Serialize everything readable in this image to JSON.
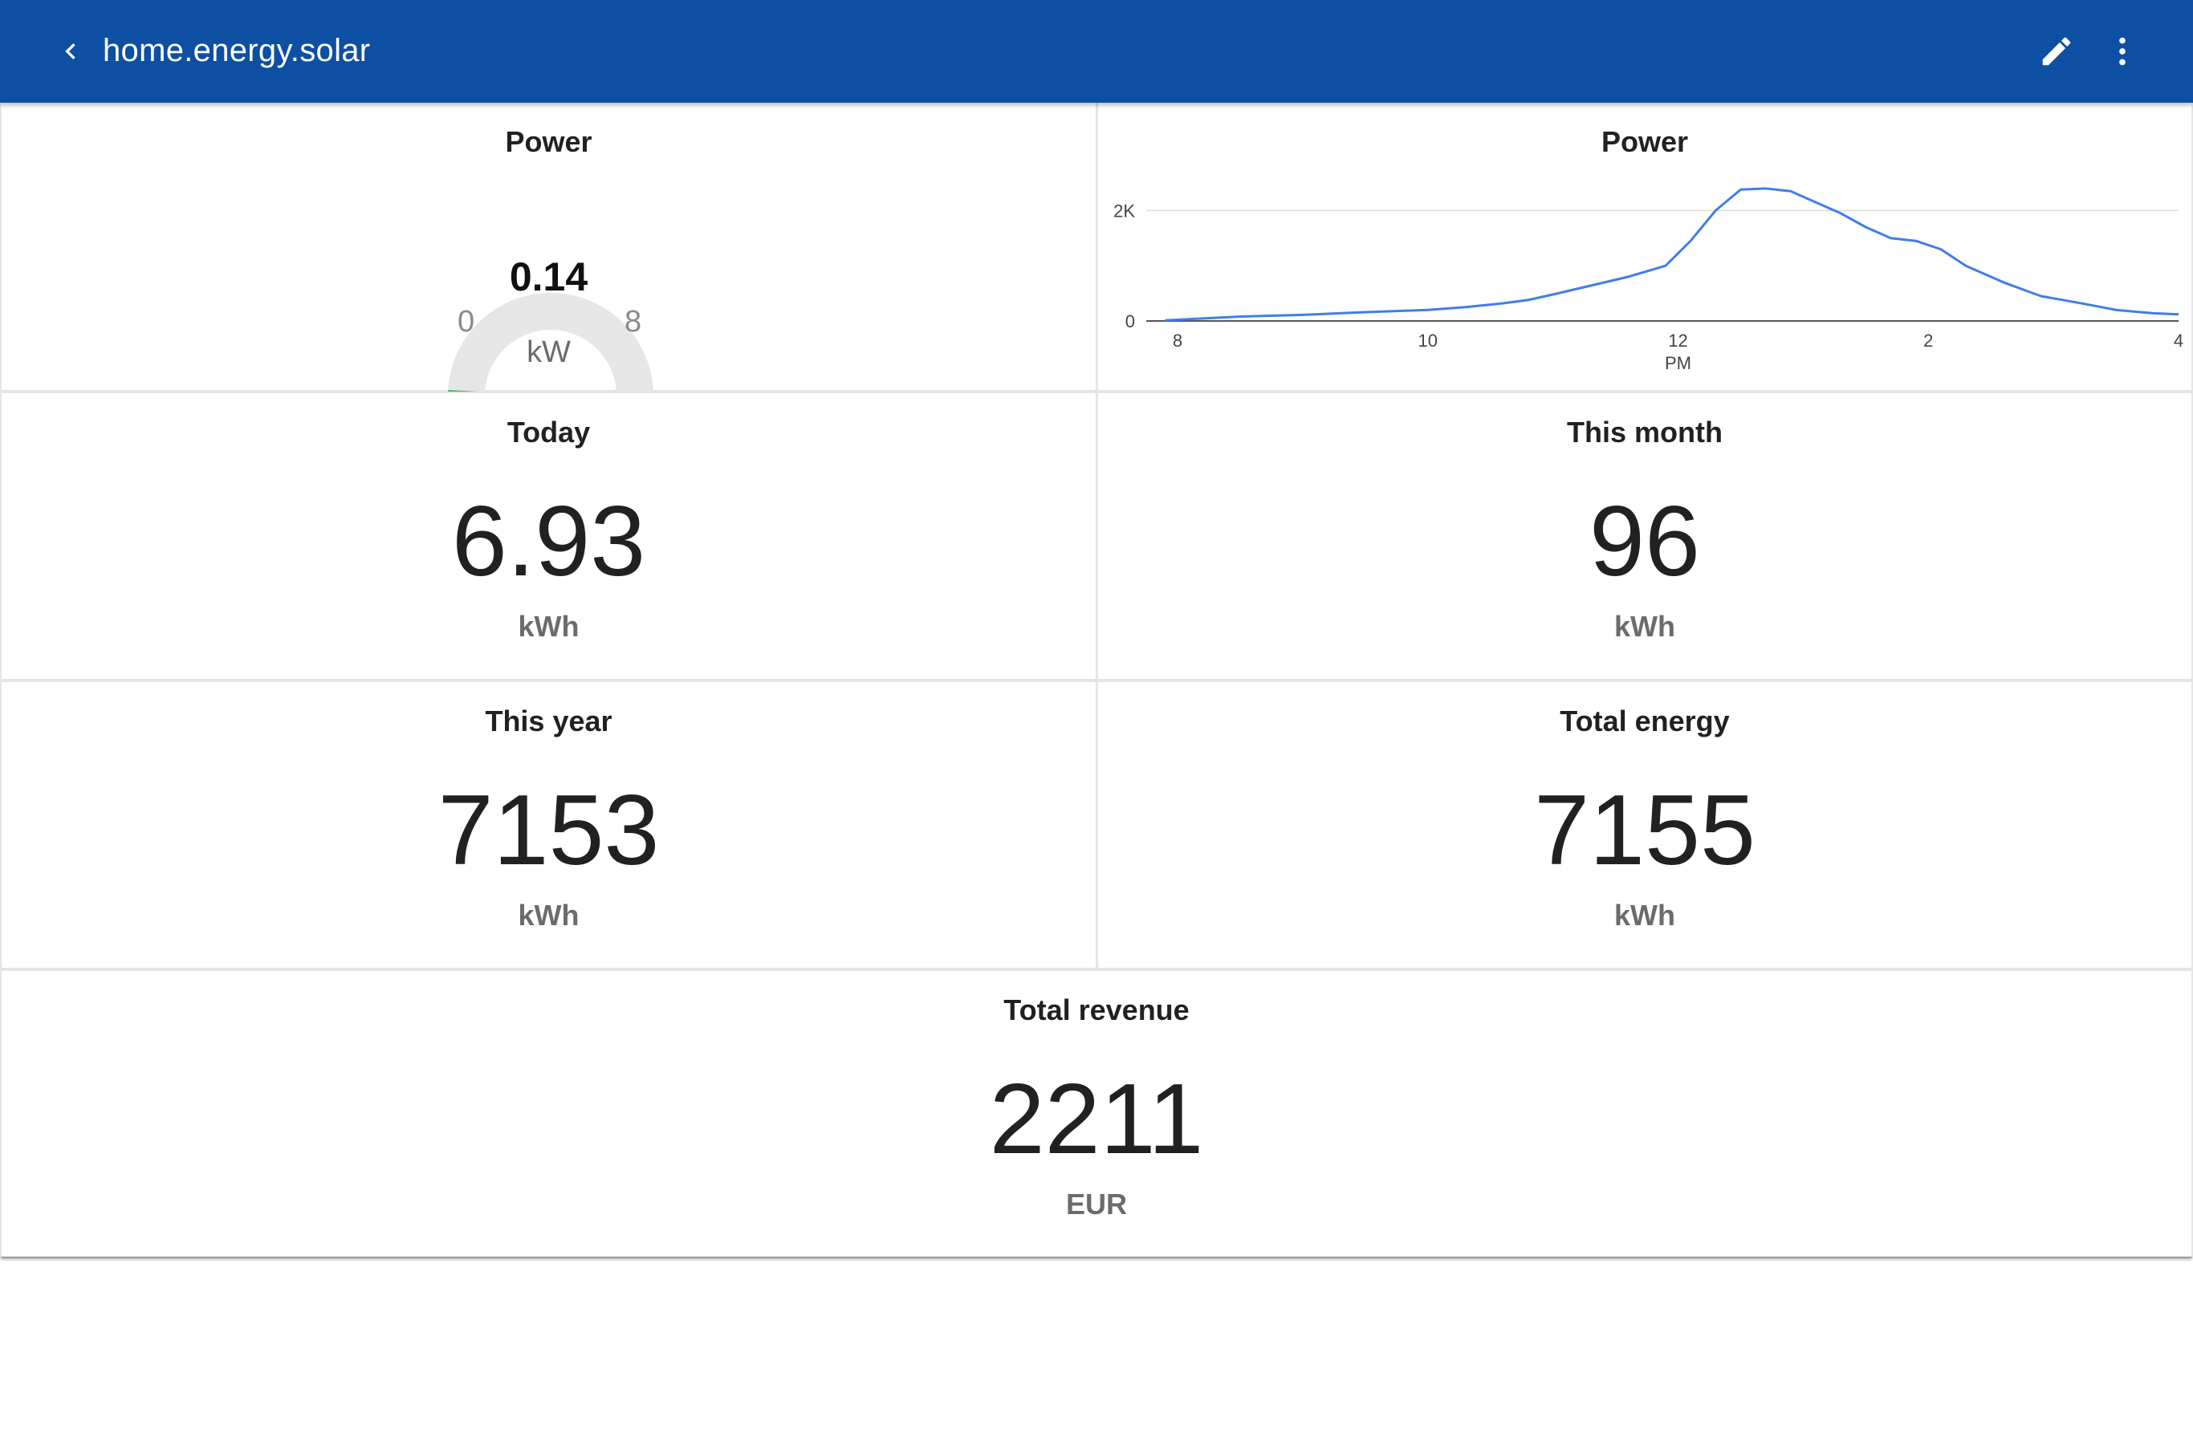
{
  "header": {
    "title": "home.energy.solar",
    "back_icon": "chevron-left-icon",
    "edit_icon": "pencil-icon",
    "more_icon": "more-vertical-icon",
    "background_color": "#0d4fa3"
  },
  "cards": {
    "power_gauge": {
      "title": "Power",
      "value": "0.14",
      "min": "0",
      "max": "8",
      "unit": "kW",
      "level": 0.0175,
      "fill_color": "#4caf50",
      "track_color": "#e6e6e6"
    },
    "power_graph": {
      "title": "Power",
      "line_color": "#3f7ee8"
    },
    "today": {
      "title": "Today",
      "value": "6.93",
      "unit": "kWh"
    },
    "this_month": {
      "title": "This month",
      "value": "96",
      "unit": "kWh"
    },
    "this_year": {
      "title": "This year",
      "value": "7153",
      "unit": "kWh"
    },
    "total_energy": {
      "title": "Total energy",
      "value": "7155",
      "unit": "kWh"
    },
    "total_revenue": {
      "title": "Total revenue",
      "value": "2211",
      "unit": "EUR"
    }
  },
  "chart_data": {
    "type": "line",
    "title": "Power",
    "xlabel": "",
    "ylabel": "",
    "x_tick_labels": [
      "8",
      "10",
      "12",
      "2",
      "4"
    ],
    "x_tick_sublabel": "PM",
    "y_tick_labels": [
      "0",
      "2K"
    ],
    "ylim": [
      0,
      2500
    ],
    "xlim": [
      7.75,
      16.0
    ],
    "grid": true,
    "series": [
      {
        "x": [
          7.9,
          8.5,
          9.0,
          9.5,
          10.0,
          10.3,
          10.6,
          10.8,
          11.0,
          11.3,
          11.6,
          11.9,
          12.1,
          12.3,
          12.5,
          12.7,
          12.9,
          13.1,
          13.3,
          13.5,
          13.7,
          13.9,
          14.1,
          14.3,
          14.6,
          14.9,
          15.2,
          15.5,
          15.8,
          16.0
        ],
        "y": [
          10,
          80,
          110,
          160,
          200,
          250,
          320,
          380,
          480,
          640,
          800,
          1000,
          1450,
          2000,
          2380,
          2400,
          2350,
          2150,
          1950,
          1700,
          1500,
          1450,
          1300,
          1000,
          700,
          450,
          330,
          200,
          140,
          120
        ]
      }
    ]
  }
}
